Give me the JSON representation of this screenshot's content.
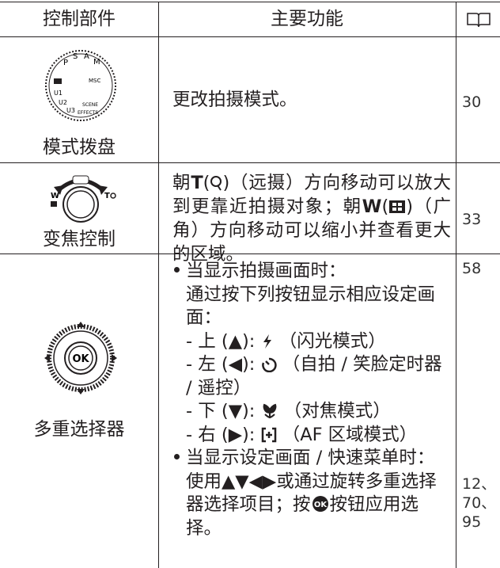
{
  "header": {
    "control": "控制部件",
    "function": "主要功能"
  },
  "rows": [
    {
      "control": "模式拨盘",
      "dial_labels": [
        "P",
        "S",
        "A",
        "M",
        "U1",
        "U2",
        "U3",
        "SCENE",
        "EFFECTS",
        "MSC"
      ],
      "function": "更改拍摄模式。",
      "pages": [
        "30"
      ]
    },
    {
      "control": "变焦控制",
      "dial_labels": [
        "W",
        "T"
      ],
      "function": {
        "a": "朝",
        "t": "T",
        "b": "（远摄）方向移动可以放大到更靠近拍摄对象；朝",
        "w": "W",
        "c": "（广角）方向移动可以缩小并查看更大的区域。"
      },
      "pages": [
        "33"
      ]
    },
    {
      "control": "多重选择器",
      "selector_label": "OK",
      "function": {
        "bullet1": "当显示拍摄画面时：",
        "bullet1_text": "通过按下列按钮显示相应设定画面：",
        "items": [
          {
            "key": "- 上 (▲):",
            "desc": "（闪光模式）"
          },
          {
            "key": "- 左 (◀):",
            "desc": "（自拍 / 笑脸定时器 / 遥控）"
          },
          {
            "key": "- 下 (▼):",
            "desc": "（对焦模式）"
          },
          {
            "key": "- 右 (▶):",
            "desc": "（AF 区域模式）"
          }
        ],
        "bullet2_a": "当显示设定画面 / 快速菜单时：使用▲▼◀▶或通过旋转多重选择器选择项目；按",
        "ok_icon": "OK",
        "bullet2_b": "按钮应用选择。"
      },
      "pages": [
        "58",
        "12、",
        "70、",
        "95"
      ]
    }
  ]
}
